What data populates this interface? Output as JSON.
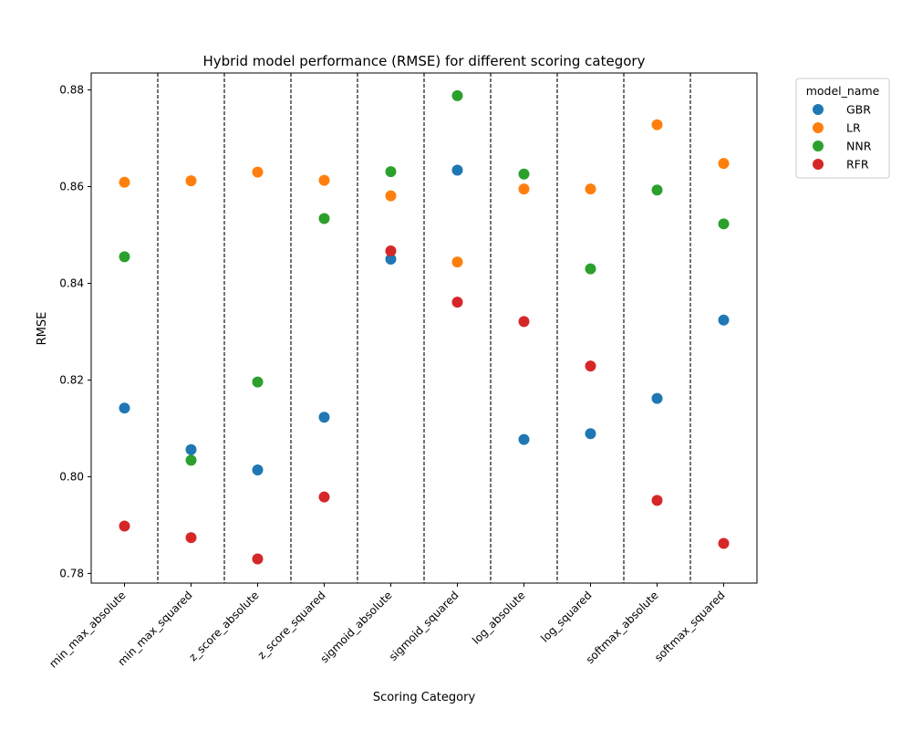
{
  "chart_data": {
    "type": "scatter",
    "title": "Hybrid model performance (RMSE) for different scoring category",
    "xlabel": "Scoring Category",
    "ylabel": "RMSE",
    "categories": [
      "min_max_absolute",
      "min_max_squared",
      "z_score_absolute",
      "z_score_squared",
      "sigmoid_absolute",
      "sigmoid_squared",
      "log_absolute",
      "log_squared",
      "softmax_absolute",
      "softmax_squared"
    ],
    "ylim": [
      0.778,
      0.8835
    ],
    "yticks": [
      "0.78",
      "0.80",
      "0.82",
      "0.84",
      "0.86",
      "0.88"
    ],
    "ytick_values": [
      0.78,
      0.8,
      0.82,
      0.84,
      0.86,
      0.88
    ],
    "grid": false,
    "category_separators": true,
    "legend": {
      "title": "model_name",
      "placement": "outside-top-right"
    },
    "series": [
      {
        "name": "GBR",
        "color": "#1f77b4",
        "values": [
          0.8142,
          0.8056,
          0.8014,
          0.8123,
          0.845,
          0.8634,
          0.8077,
          0.8089,
          0.8162,
          0.8324
        ]
      },
      {
        "name": "LR",
        "color": "#ff7f0e",
        "values": [
          0.8609,
          0.8612,
          0.863,
          0.8613,
          0.8581,
          0.8444,
          0.8595,
          0.8595,
          0.8728,
          0.8648
        ]
      },
      {
        "name": "NNR",
        "color": "#2ca02c",
        "values": [
          0.8455,
          0.8034,
          0.8196,
          0.8534,
          0.8631,
          0.8788,
          0.8626,
          0.843,
          0.8593,
          0.8523
        ]
      },
      {
        "name": "RFR",
        "color": "#d62728",
        "values": [
          0.7898,
          0.7874,
          0.783,
          0.7958,
          0.8467,
          0.8361,
          0.8321,
          0.8229,
          0.7951,
          0.7862
        ]
      }
    ]
  }
}
